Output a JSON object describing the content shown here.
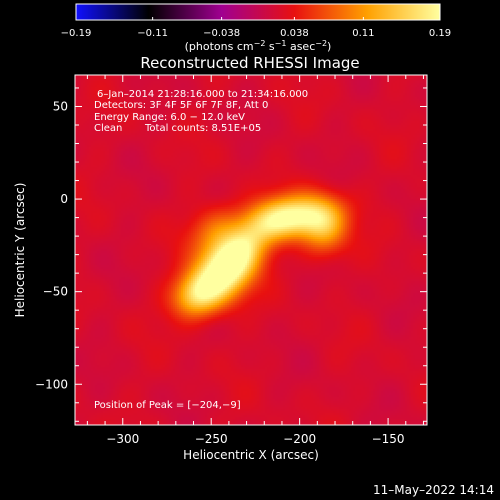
{
  "chart_data": {
    "type": "heatmap",
    "title": "Reconstructed RHESSI Image",
    "xlabel": "Heliocentric X (arcsec)",
    "ylabel": "Heliocentric Y (arcsec)",
    "xlim": [
      -327,
      -128
    ],
    "ylim": [
      -122,
      67
    ],
    "xticks": [
      -300,
      -250,
      -200,
      -150
    ],
    "yticks": [
      50,
      0,
      -50,
      -100
    ],
    "xtick_labels": [
      "−300",
      "−250",
      "−200",
      "−150"
    ],
    "ytick_labels": [
      "50",
      "0",
      "−50",
      "−100"
    ],
    "colorbar": {
      "min": -0.19,
      "max": 0.19,
      "ticks": [
        -0.19,
        -0.11,
        -0.038,
        0.038,
        0.11,
        0.19
      ],
      "tick_labels": [
        "−0.19",
        "−0.11",
        "−0.038",
        "0.038",
        "0.11",
        "0.19"
      ],
      "unit_prefix": "(photons cm",
      "unit_exp1": "−2",
      "unit_mid1": " s",
      "unit_exp2": "−1",
      "unit_mid2": " asec",
      "unit_exp3": "−2",
      "unit_suffix": ")",
      "colors": [
        "#1010ff",
        "#000000",
        "#a00090",
        "#e81010",
        "#ffa000",
        "#ffffa0"
      ]
    },
    "annotations": {
      "time_range": "6–Jan–2014 21:28:16.000 to 21:34:16.000",
      "detectors": "Detectors: 3F 4F 5F 6F 7F 8F, Att 0",
      "energy_range": "Energy Range: 6.0 − 12.0 keV",
      "method": "Clean",
      "total_counts": "Total counts: 8.51E+05",
      "peak_position": "Position of Peak = [−204,−9]"
    },
    "peak": {
      "x": -204,
      "y": -9,
      "value": 0.19
    },
    "background_level": 0.02,
    "source_components": [
      {
        "x": -243,
        "y": -40,
        "sx": 14,
        "sy": 10,
        "angle": 38,
        "amp": 0.155
      },
      {
        "x": -258,
        "y": -52,
        "sx": 10,
        "sy": 8,
        "angle": 20,
        "amp": 0.11
      },
      {
        "x": -234,
        "y": -28,
        "sx": 14,
        "sy": 8,
        "angle": 40,
        "amp": 0.1
      },
      {
        "x": -206,
        "y": -10,
        "sx": 17,
        "sy": 8,
        "angle": 8,
        "amp": 0.17
      },
      {
        "x": -186,
        "y": -16,
        "sx": 9,
        "sy": 10,
        "angle": 0,
        "amp": 0.09
      },
      {
        "x": -248,
        "y": -18,
        "sx": 11,
        "sy": 9,
        "angle": 30,
        "amp": 0.06
      }
    ]
  },
  "footer": {
    "timestamp": "11–May–2022 14:14"
  }
}
